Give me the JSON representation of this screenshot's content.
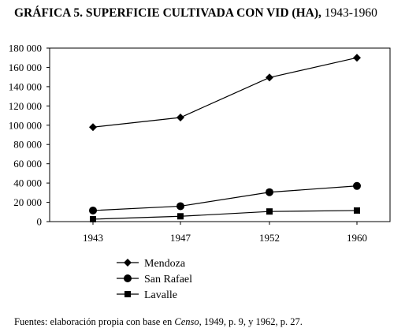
{
  "chart_data": {
    "type": "line",
    "title": "GRÁFICA 5. SUPERFICIE CULTIVADA CON VID (HA),",
    "title_years": "1943-1960",
    "categories": [
      "1943",
      "1947",
      "1952",
      "1960"
    ],
    "ylim": [
      0,
      180000
    ],
    "yticks": [
      0,
      20000,
      40000,
      60000,
      80000,
      100000,
      120000,
      140000,
      160000,
      180000
    ],
    "ytick_labels": [
      "0",
      "20 000",
      "40 000",
      "60 000",
      "80 000",
      "100 000",
      "120 000",
      "140 000",
      "160 000",
      "180 000"
    ],
    "grid": false,
    "legend_position": "bottom-left",
    "series": [
      {
        "name": "Mendoza",
        "marker": "diamond",
        "values": [
          98000,
          108000,
          149500,
          170000
        ]
      },
      {
        "name": "San Rafael",
        "marker": "circle",
        "values": [
          11500,
          16000,
          30500,
          37000
        ]
      },
      {
        "name": "Lavalle",
        "marker": "square",
        "values": [
          2500,
          5500,
          10500,
          11500
        ]
      }
    ]
  },
  "source": {
    "prefix": "Fuentes: elaboración propia con base en ",
    "italic": "Censo",
    "suffix": ", 1949, p. 9, y 1962, p. 27."
  }
}
